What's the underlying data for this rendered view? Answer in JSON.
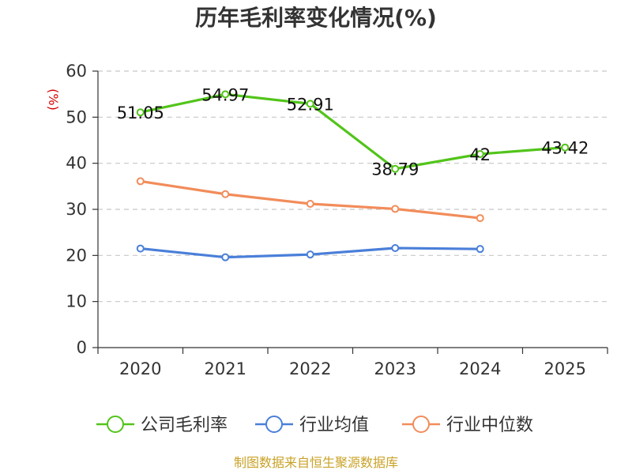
{
  "chart_data": {
    "type": "line",
    "title": "历年毛利率变化情况(%)",
    "ylabel": "(%)",
    "xlabel": "",
    "categories": [
      "2020",
      "2021",
      "2022",
      "2023",
      "2024",
      "2025"
    ],
    "ylim": [
      0,
      60
    ],
    "yticks": [
      0,
      10,
      20,
      30,
      40,
      50,
      60
    ],
    "grid": "horizontal dashed",
    "legend_position": "bottom",
    "series": [
      {
        "name": "公司毛利率",
        "color": "#52c41a",
        "values": [
          51.05,
          54.97,
          52.91,
          38.79,
          42,
          43.42
        ],
        "labels": [
          "51.05",
          "54.97",
          "52.91",
          "38.79",
          "42",
          "43.42"
        ]
      },
      {
        "name": "行业均值",
        "color": "#4a7fd9",
        "values": [
          21.5,
          19.6,
          20.2,
          21.6,
          21.4,
          null
        ]
      },
      {
        "name": "行业中位数",
        "color": "#f28c5a",
        "values": [
          36.1,
          33.3,
          31.2,
          30.1,
          28.1,
          null
        ]
      }
    ]
  },
  "source_text": "制图数据来自恒生聚源数据库"
}
